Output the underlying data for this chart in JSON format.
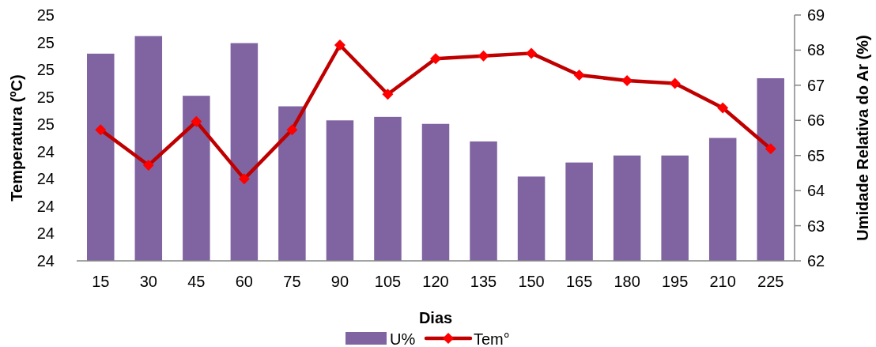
{
  "chart_data": {
    "type": "bar",
    "xlabel": "Dias",
    "ylabel": "Temperatura (ºC)",
    "y2label": "Umidade Relativa do Ar (%)",
    "categories": [
      "15",
      "30",
      "45",
      "60",
      "75",
      "90",
      "105",
      "120",
      "135",
      "150",
      "165",
      "180",
      "195",
      "210",
      "225"
    ],
    "series": [
      {
        "name": "U%",
        "axis": "y2",
        "color": "#8064a2",
        "values": [
          67.9,
          68.4,
          66.7,
          68.2,
          66.4,
          66.0,
          66.1,
          65.9,
          65.4,
          64.4,
          64.8,
          65.0,
          65.0,
          65.5,
          67.2
        ]
      },
      {
        "name": "Tem°",
        "type": "line",
        "color": "#c00000",
        "marker": "diamond",
        "values": [
          24.48,
          24.35,
          24.51,
          24.3,
          24.48,
          24.79,
          24.61,
          24.74,
          24.75,
          24.76,
          24.68,
          24.66,
          24.65,
          24.56,
          24.41
        ]
      }
    ],
    "ylim": [
      24.0,
      24.9
    ],
    "yticks": [
      {
        "value": 24.0,
        "label": "24"
      },
      {
        "value": 24.1,
        "label": "24"
      },
      {
        "value": 24.2,
        "label": "24"
      },
      {
        "value": 24.3,
        "label": "24"
      },
      {
        "value": 24.4,
        "label": "24"
      },
      {
        "value": 24.5,
        "label": "25"
      },
      {
        "value": 24.6,
        "label": "25"
      },
      {
        "value": 24.7,
        "label": "25"
      },
      {
        "value": 24.8,
        "label": "25"
      },
      {
        "value": 24.9,
        "label": "25"
      }
    ],
    "y2lim": [
      62,
      69
    ],
    "y2ticks": [
      62,
      63,
      64,
      65,
      66,
      67,
      68,
      69
    ],
    "legend": "bottom",
    "grid": false
  }
}
